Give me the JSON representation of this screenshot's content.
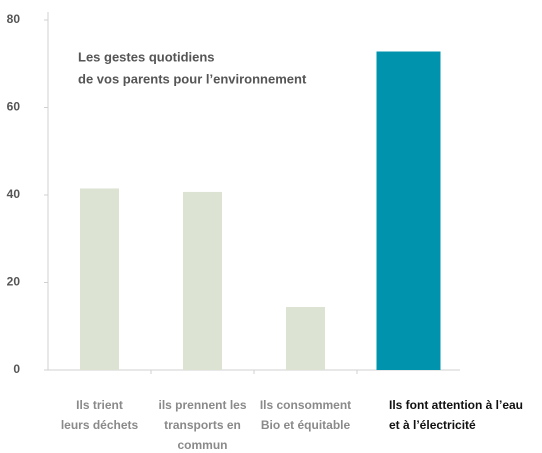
{
  "chart_data": {
    "type": "bar",
    "title": [
      "Les gestes quotidiens",
      "de vos parents pour l’environnement"
    ],
    "categories": [
      [
        "Ils trient",
        "leurs déchets"
      ],
      [
        "ils prennent les",
        "transports en",
        "commun"
      ],
      [
        "Ils consomment",
        "Bio et équitable"
      ],
      [
        "Ils font attention à l’eau",
        "et à l’électricité"
      ]
    ],
    "values": [
      41.5,
      40.7,
      14.4,
      72.8
    ],
    "colors": [
      "#dde3d2",
      "#dde3d2",
      "#dde3d2",
      "#0093ad"
    ],
    "highlight": 3,
    "ylim": [
      0,
      80
    ],
    "yticks": [
      0,
      20,
      40,
      60,
      80
    ],
    "grid": false
  }
}
